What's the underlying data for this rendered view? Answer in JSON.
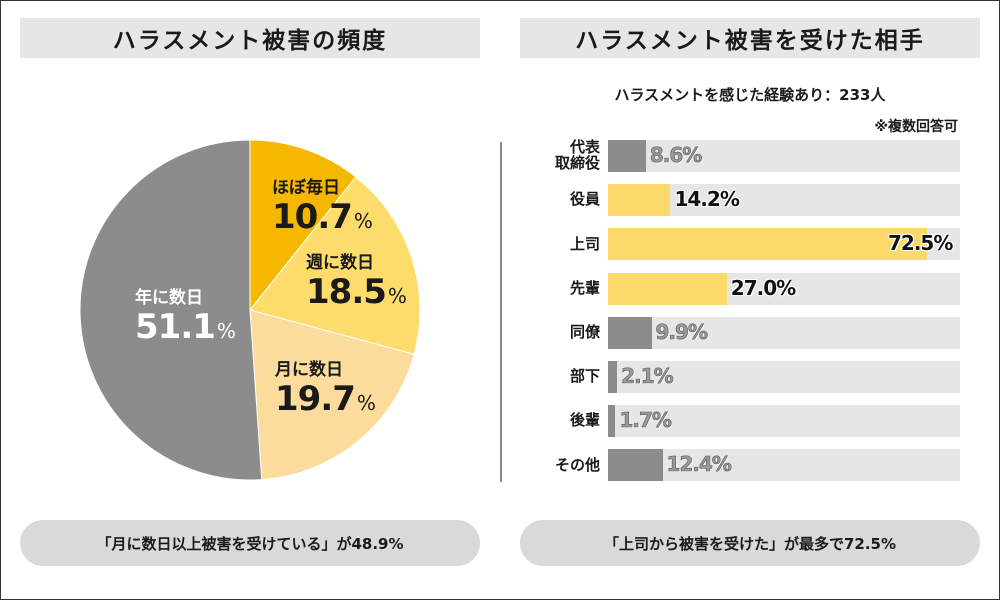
{
  "left_title": "ハラスメント被害の頻度",
  "right_title": "ハラスメント被害を受けた相手",
  "right_subtitle": "ハラスメントを感じた経験あり：233人",
  "multi_answer_note": "※複数回答可",
  "percent_sign": "%",
  "left_summary": "「月に数日以上被害を受けている」が48.9%",
  "right_summary": "「上司から被害を受けた」が最多で72.5%",
  "colors": {
    "dark_yellow": "#f5b700",
    "mid_yellow": "#fddc6c",
    "light_yellow": "#fbdc9c",
    "gray": "#8c8c8c",
    "track": "#e6e6e6",
    "bar_yellow": "#fdd96a"
  },
  "chart_data": [
    {
      "type": "pie",
      "title": "ハラスメント被害の頻度",
      "slices": [
        {
          "label": "ほぼ毎日",
          "value": 10.7,
          "value_text": "10.7",
          "color": "#f5b700"
        },
        {
          "label": "週に数日",
          "value": 18.5,
          "value_text": "18.5",
          "color": "#fddc6c"
        },
        {
          "label": "月に数日",
          "value": 19.7,
          "value_text": "19.7",
          "color": "#fbdc9c"
        },
        {
          "label": "年に数日",
          "value": 51.1,
          "value_text": "51.1",
          "color": "#8c8c8c"
        }
      ]
    },
    {
      "type": "bar",
      "orientation": "horizontal",
      "title": "ハラスメント被害を受けた相手",
      "xlim": [
        0,
        80
      ],
      "categories": [
        "代表\n取締役",
        "役員",
        "上司",
        "先輩",
        "同僚",
        "部下",
        "後輩",
        "その他"
      ],
      "values": [
        8.6,
        14.2,
        72.5,
        27.0,
        9.9,
        2.1,
        1.7,
        12.4
      ],
      "value_texts": [
        "8.6%",
        "14.2%",
        "72.5%",
        "27.0%",
        "9.9%",
        "2.1%",
        "1.7%",
        "12.4%"
      ],
      "highlight": [
        false,
        true,
        true,
        true,
        false,
        false,
        false,
        false
      ]
    }
  ]
}
